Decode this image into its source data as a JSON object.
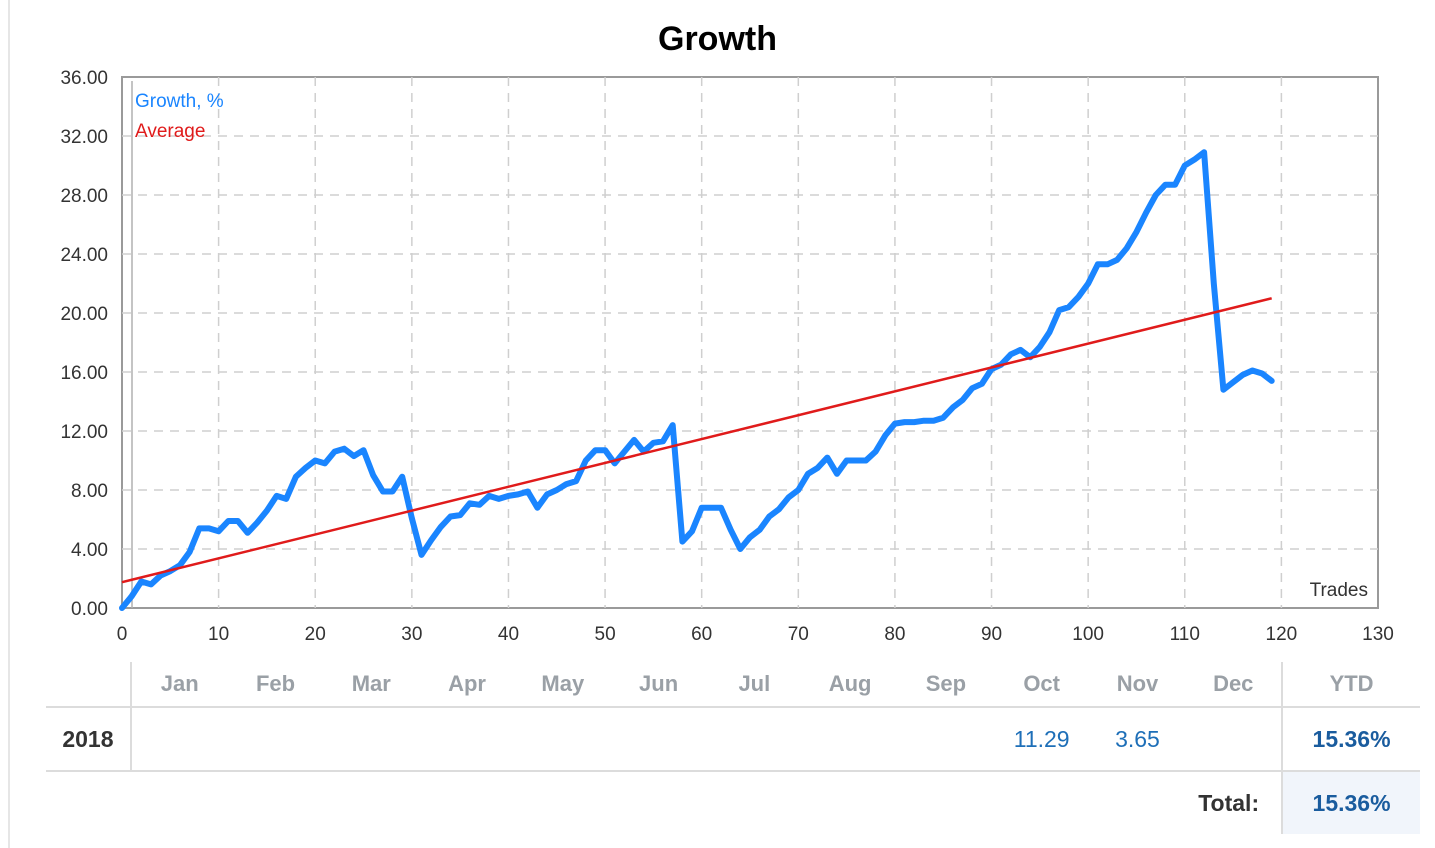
{
  "chart_data": {
    "type": "line",
    "title": "Growth",
    "xlabel": "Trades",
    "ylabel": "",
    "xlim": [
      0,
      130
    ],
    "ylim": [
      0,
      36
    ],
    "grid": true,
    "legend_position": "top-left",
    "x_ticks": [
      "0",
      "10",
      "20",
      "30",
      "40",
      "50",
      "60",
      "70",
      "80",
      "90",
      "100",
      "110",
      "120",
      "130"
    ],
    "y_ticks": [
      "0.00",
      "4.00",
      "8.00",
      "12.00",
      "16.00",
      "20.00",
      "24.00",
      "28.00",
      "32.00",
      "36.00"
    ],
    "series": [
      {
        "name": "Growth, %",
        "color": "#1a85ff",
        "x": [
          0,
          1,
          2,
          3,
          4,
          5,
          6,
          7,
          8,
          9,
          10,
          11,
          12,
          13,
          14,
          15,
          16,
          17,
          18,
          19,
          20,
          21,
          22,
          23,
          24,
          25,
          26,
          27,
          28,
          29,
          30,
          31,
          32,
          33,
          34,
          35,
          36,
          37,
          38,
          39,
          40,
          41,
          42,
          43,
          44,
          45,
          46,
          47,
          48,
          49,
          50,
          51,
          52,
          53,
          54,
          55,
          56,
          57,
          58,
          59,
          60,
          61,
          62,
          63,
          64,
          65,
          66,
          67,
          68,
          69,
          70,
          71,
          72,
          73,
          74,
          75,
          76,
          77,
          78,
          79,
          80,
          81,
          82,
          83,
          84,
          85,
          86,
          87,
          88,
          89,
          90,
          91,
          92,
          93,
          94,
          95,
          96,
          97,
          98,
          99,
          100,
          101,
          102,
          103,
          104,
          105,
          106,
          107,
          108,
          109,
          110,
          111,
          112,
          113,
          114,
          115,
          116,
          117,
          118,
          119
        ],
        "values": [
          0,
          0.8,
          1.8,
          1.6,
          2.2,
          2.5,
          2.9,
          3.8,
          5.4,
          5.4,
          5.2,
          5.9,
          5.9,
          5.1,
          5.8,
          6.6,
          7.6,
          7.4,
          8.9,
          9.5,
          10.0,
          9.8,
          10.6,
          10.8,
          10.3,
          10.7,
          9.0,
          7.9,
          7.9,
          8.9,
          6.1,
          3.6,
          4.6,
          5.5,
          6.2,
          6.3,
          7.1,
          7.0,
          7.6,
          7.4,
          7.6,
          7.7,
          7.9,
          6.8,
          7.7,
          8.0,
          8.4,
          8.6,
          10.0,
          10.7,
          10.7,
          9.8,
          10.6,
          11.4,
          10.6,
          11.2,
          11.3,
          12.4,
          4.5,
          5.2,
          6.8,
          6.8,
          6.8,
          5.3,
          4.0,
          4.8,
          5.3,
          6.2,
          6.7,
          7.5,
          8.0,
          9.1,
          9.5,
          10.2,
          9.1,
          10.0,
          10.0,
          10.0,
          10.6,
          11.7,
          12.5,
          12.6,
          12.6,
          12.7,
          12.7,
          12.9,
          13.6,
          14.1,
          14.9,
          15.2,
          16.2,
          16.5,
          17.2,
          17.5,
          17.0,
          17.7,
          18.7,
          20.2,
          20.4,
          21.1,
          22.0,
          23.3,
          23.3,
          23.6,
          24.4,
          25.5,
          26.8,
          28.0,
          28.7,
          28.7,
          30.0,
          30.4,
          30.9,
          22.0,
          14.8,
          15.3,
          15.8,
          16.1,
          15.9,
          15.4
        ]
      },
      {
        "name": "Average",
        "color": "#e01b1b",
        "x": [
          0,
          119
        ],
        "values": [
          1.75,
          21.0
        ]
      }
    ]
  },
  "table": {
    "months": [
      "Jan",
      "Feb",
      "Mar",
      "Apr",
      "May",
      "Jun",
      "Jul",
      "Aug",
      "Sep",
      "Oct",
      "Nov",
      "Dec"
    ],
    "ytd_header": "YTD",
    "rows": [
      {
        "year": "2018",
        "values": [
          "",
          "",
          "",
          "",
          "",
          "",
          "",
          "",
          "",
          "11.29",
          "3.65",
          ""
        ],
        "ytd": "15.36%"
      }
    ],
    "total_label": "Total:",
    "total_value": "15.36%"
  }
}
